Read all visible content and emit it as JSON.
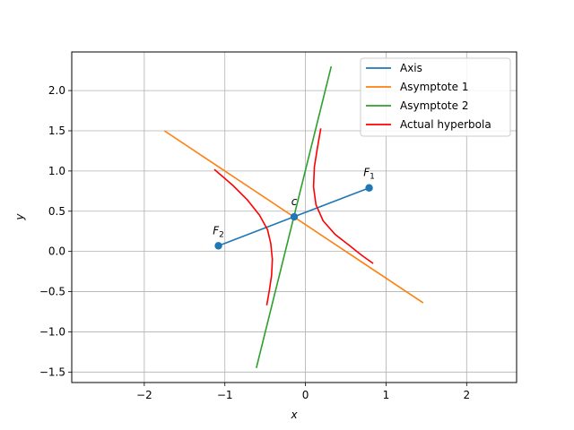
{
  "chart_data": {
    "type": "line",
    "title": "",
    "xlabel": "x",
    "ylabel": "y",
    "xlim": [
      -2.9,
      2.62
    ],
    "ylim": [
      -1.63,
      2.48
    ],
    "xticks": [
      -2,
      -1,
      0,
      1,
      2
    ],
    "xtick_labels": [
      "−2",
      "−1",
      "0",
      "1",
      "2"
    ],
    "yticks": [
      -1.5,
      -1.0,
      -0.5,
      0.0,
      0.5,
      1.0,
      1.5,
      2.0
    ],
    "ytick_labels": [
      "−1.5",
      "−1.0",
      "−0.5",
      "0.0",
      "0.5",
      "1.0",
      "1.5",
      "2.0"
    ],
    "grid": true,
    "legend_position": "top-right",
    "series": [
      {
        "name": "Axis",
        "color": "#1f77b4",
        "x": [
          -1.08,
          0.79
        ],
        "y": [
          0.07,
          0.79
        ],
        "markers": true
      },
      {
        "name": "Asymptote 1",
        "color": "#ff7f0e",
        "x": [
          -1.75,
          1.46
        ],
        "y": [
          1.5,
          -0.64
        ]
      },
      {
        "name": "Asymptote 2",
        "color": "#2ca02c",
        "x": [
          -0.61,
          0.32
        ],
        "y": [
          -1.45,
          2.3
        ]
      },
      {
        "name": "Actual hyperbola",
        "color": "#ff0000",
        "branches": [
          {
            "x": [
              -1.13,
              -0.9,
              -0.72,
              -0.57,
              -0.47,
              -0.43,
              -0.41,
              -0.42,
              -0.45,
              -0.48
            ],
            "y": [
              1.02,
              0.82,
              0.64,
              0.45,
              0.27,
              0.1,
              -0.1,
              -0.3,
              -0.5,
              -0.67
            ]
          },
          {
            "x": [
              0.19,
              0.15,
              0.11,
              0.1,
              0.13,
              0.22,
              0.37,
              0.55,
              0.7,
              0.84
            ],
            "y": [
              1.53,
              1.3,
              1.05,
              0.8,
              0.58,
              0.38,
              0.21,
              0.07,
              -0.05,
              -0.15
            ]
          }
        ]
      }
    ],
    "annotations": [
      {
        "name": "F1",
        "base": "F",
        "sub": "1",
        "x": 0.79,
        "y": 0.79
      },
      {
        "name": "F2",
        "base": "F",
        "sub": "2",
        "x": -1.08,
        "y": 0.07
      },
      {
        "name": "c",
        "base": "c",
        "sub": "",
        "x": -0.14,
        "y": 0.43
      }
    ]
  }
}
